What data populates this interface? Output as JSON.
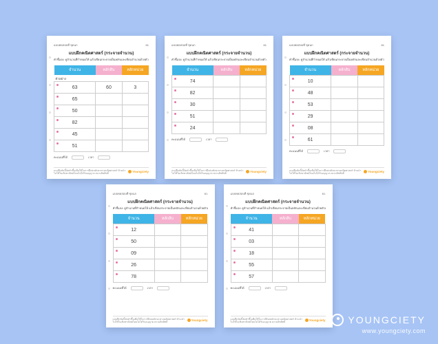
{
  "background_color": "#a7c4f5",
  "brand": {
    "name": "YOUNGCIETY",
    "url": "www.youngciety.com"
  },
  "sheet_common": {
    "header_left": "แบบทดสอบที่ ชุดนก ",
    "header_right": "ย1",
    "title": "แบบฝึกคณิตศาสตร์ (กระจายจำนวน)",
    "subtitle": "คำชี้แจง: ดูจำนวนที่กำหนดให้ แล้วเขียนกระจายเป็นหลักและเขียนจำนวนด้วยตัวเข้าที่ปูเต็ม",
    "col1": "จำนวน",
    "col2": "หลักสิบ",
    "col3": "หลักหน่วย",
    "ex_label": "ตัวอย่าง",
    "stats_labels": [
      "คะแนนที่ได้",
      "เวลา"
    ],
    "footer_text": "แบบฝึกหัดนี้จัดทำขึ้นเพื่อใช้ในการฝึกฝนทักษะทางคณิตศาสตร์ ห้ามนำไปใช้ในเชิงพาณิชย์โดยไม่ได้รับอนุญาต สงวนลิขสิทธิ์",
    "footer_brand": "Youngciety",
    "header_colors": {
      "col1": "#3fb4e6",
      "col2": "#f5b0ce",
      "col3": "#f5a623"
    }
  },
  "sheets": [
    {
      "example": [
        "63",
        "60",
        "3"
      ],
      "rows": [
        "65",
        "50",
        "82",
        "45",
        "51"
      ]
    },
    {
      "example": [
        "74",
        "",
        ""
      ],
      "rows": [
        "82",
        "30",
        "51",
        "24",
        ""
      ]
    },
    {
      "example": [
        "10",
        "",
        ""
      ],
      "rows": [
        "48",
        "53",
        "29",
        "08",
        "61"
      ]
    },
    {
      "example": [
        "12",
        "",
        ""
      ],
      "rows": [
        "50",
        "09",
        "26",
        "78",
        ""
      ]
    },
    {
      "example": [
        "41",
        "",
        ""
      ],
      "rows": [
        "03",
        "18",
        "55",
        "57",
        ""
      ]
    }
  ]
}
